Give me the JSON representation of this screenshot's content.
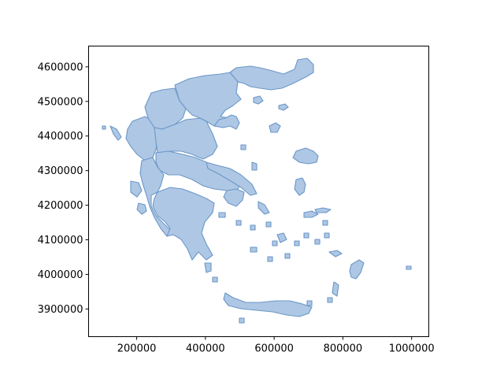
{
  "figure": {
    "background": "#ffffff",
    "axes_edge_color": "#000000"
  },
  "map": {
    "fill_color": "#aec7e4",
    "edge_color": "#6b97c8"
  },
  "chart_data": {
    "type": "map",
    "title": "",
    "xlabel": "",
    "ylabel": "",
    "xlim": [
      60000,
      1050000
    ],
    "ylim": [
      3820000,
      4660000
    ],
    "x_ticks": [
      200000,
      400000,
      600000,
      800000,
      1000000
    ],
    "y_ticks": [
      3900000,
      4000000,
      4100000,
      4200000,
      4300000,
      4400000,
      4500000,
      4600000
    ],
    "x_tick_labels": [
      "200000",
      "400000",
      "600000",
      "800000",
      "1000000"
    ],
    "y_tick_labels": [
      "3900000",
      "4000000",
      "4100000",
      "4200000",
      "4300000",
      "4400000",
      "4500000",
      "4600000"
    ],
    "grid": false,
    "legend": "none"
  }
}
